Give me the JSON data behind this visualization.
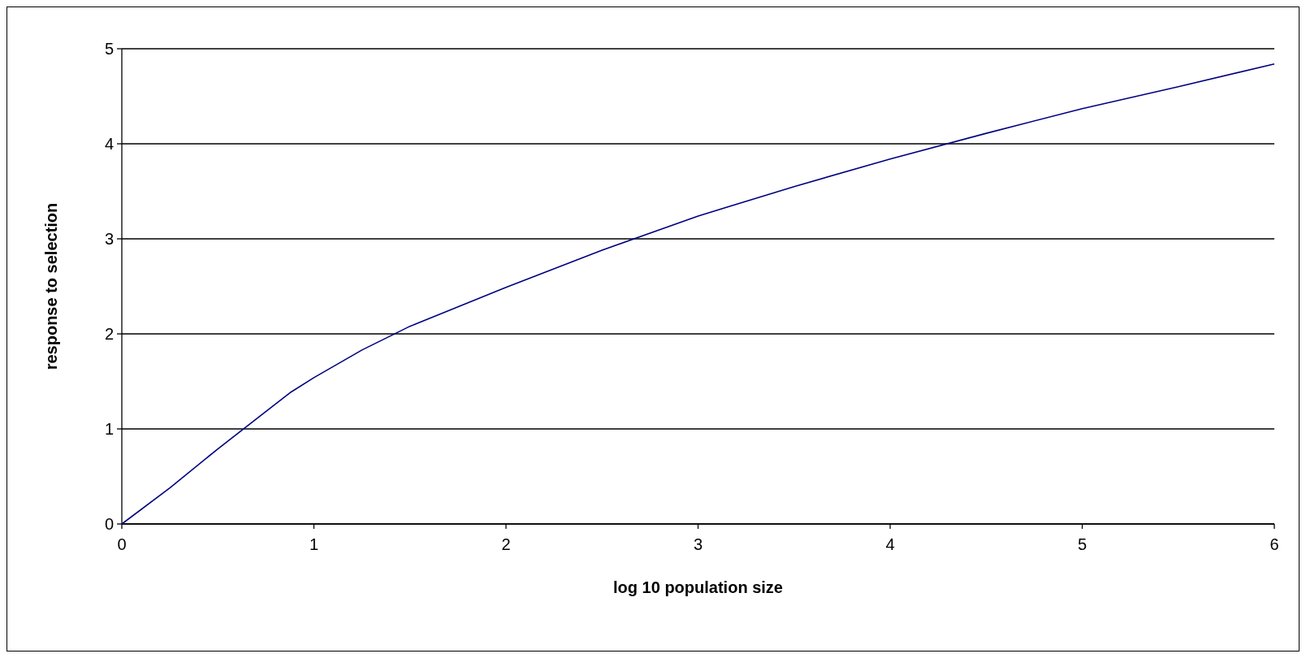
{
  "chart_data": {
    "type": "line",
    "xlabel": "log 10 population size",
    "ylabel": "response to selection",
    "x": [
      0,
      0.25,
      0.5,
      0.875,
      1,
      1.25,
      1.5,
      2,
      2.5,
      3,
      3.5,
      4,
      4.5,
      5,
      5.5,
      6
    ],
    "series": [
      {
        "color": "#000080",
        "values": [
          0,
          0.38,
          0.79,
          1.38,
          1.54,
          1.83,
          2.08,
          2.49,
          2.88,
          3.24,
          3.55,
          3.84,
          4.11,
          4.37,
          4.6,
          4.84
        ]
      }
    ],
    "xlim": [
      0,
      6
    ],
    "xticks": [
      0,
      1,
      2,
      3,
      4,
      5,
      6
    ],
    "ylim": [
      0,
      5
    ],
    "yticks": [
      0,
      1,
      2,
      3,
      4,
      5
    ],
    "grid": "y",
    "marker": "none",
    "line_style": "solid"
  }
}
